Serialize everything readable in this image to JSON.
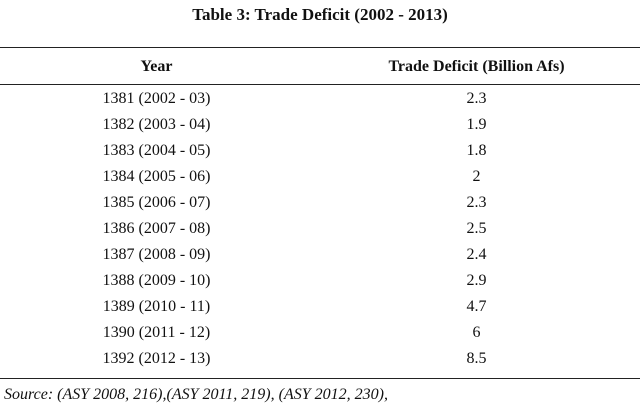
{
  "table": {
    "title": "Table 3: Trade Deficit (2002 - 2013)",
    "columns": [
      "Year",
      "Trade Deficit (Billion Afs)"
    ],
    "rows": [
      {
        "year": "1381 (2002 - 03)",
        "deficit": "2.3"
      },
      {
        "year": "1382 (2003 - 04)",
        "deficit": "1.9"
      },
      {
        "year": "1383 (2004 - 05)",
        "deficit": "1.8"
      },
      {
        "year": "1384 (2005 - 06)",
        "deficit": "2"
      },
      {
        "year": "1385 (2006 - 07)",
        "deficit": "2.3"
      },
      {
        "year": "1386 (2007 - 08)",
        "deficit": "2.5"
      },
      {
        "year": "1387 (2008 - 09)",
        "deficit": "2.4"
      },
      {
        "year": "1388 (2009 - 10)",
        "deficit": "2.9"
      },
      {
        "year": "1389 (2010 - 11)",
        "deficit": "4.7"
      },
      {
        "year": "1390 (2011 - 12)",
        "deficit": "6"
      },
      {
        "year": "1392 (2012 - 13)",
        "deficit": "8.5"
      }
    ],
    "source": "Source: (ASY 2008, 216),(ASY 2011, 219), (ASY 2012, 230),"
  }
}
